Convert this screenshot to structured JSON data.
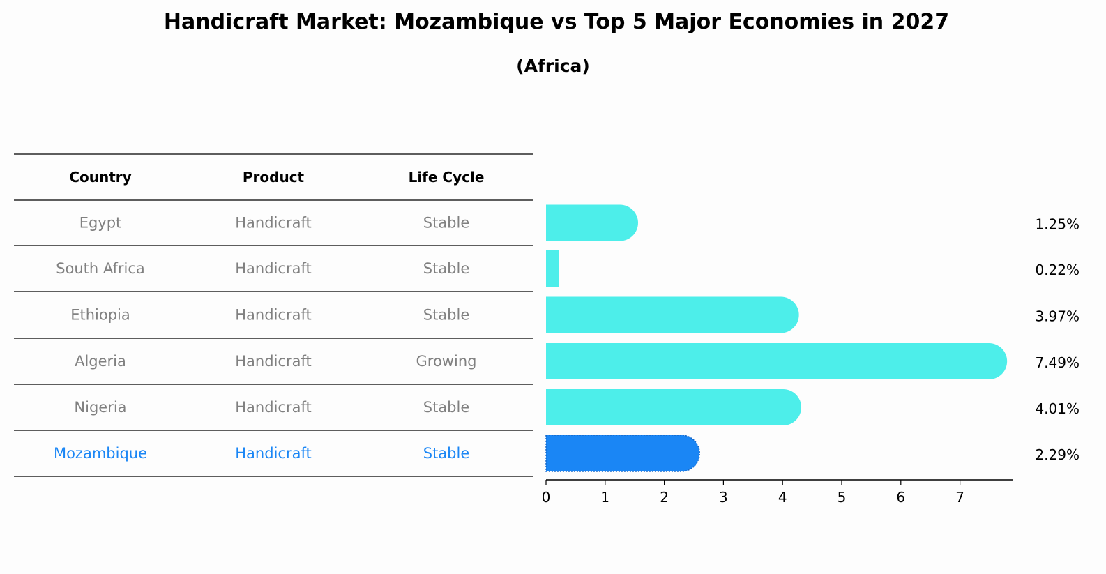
{
  "title": "Handicraft Market: Mozambique vs Top 5 Major Economies in 2027",
  "subtitle": "(Africa)",
  "table": {
    "headers": [
      "Country",
      "Product",
      "Life Cycle"
    ],
    "rows": [
      {
        "country": "Egypt",
        "product": "Handicraft",
        "life_cycle": "Stable",
        "highlight": false
      },
      {
        "country": "South Africa",
        "product": "Handicraft",
        "life_cycle": "Stable",
        "highlight": false
      },
      {
        "country": "Ethiopia",
        "product": "Handicraft",
        "life_cycle": "Stable",
        "highlight": false
      },
      {
        "country": "Algeria",
        "product": "Handicraft",
        "life_cycle": "Growing",
        "highlight": false
      },
      {
        "country": "Nigeria",
        "product": "Handicraft",
        "life_cycle": "Stable",
        "highlight": false
      },
      {
        "country": "Mozambique",
        "product": "Handicraft",
        "life_cycle": "Stable",
        "highlight": true
      }
    ]
  },
  "chart_data": {
    "type": "bar",
    "orientation": "horizontal",
    "categories": [
      "Egypt",
      "South Africa",
      "Ethiopia",
      "Algeria",
      "Nigeria",
      "Mozambique"
    ],
    "values": [
      1.25,
      0.22,
      3.97,
      7.49,
      4.01,
      2.29
    ],
    "value_labels": [
      "1.25%",
      "0.22%",
      "3.97%",
      "7.49%",
      "4.01%",
      "2.29%"
    ],
    "xticks": [
      "0",
      "1",
      "2",
      "3",
      "4",
      "5",
      "6",
      "7"
    ],
    "xlim": [
      0,
      7.9
    ],
    "highlight_category": "Mozambique",
    "title": "Handicraft Market: Mozambique vs Top 5 Major Economies in 2027",
    "subtitle": "(Africa)",
    "xlabel": "",
    "ylabel": ""
  },
  "colors": {
    "bar": "#4deeea",
    "highlight_bar": "#1a86f5",
    "text_muted": "#808080",
    "text_highlight": "#1a86f5",
    "rule": "#000000"
  }
}
